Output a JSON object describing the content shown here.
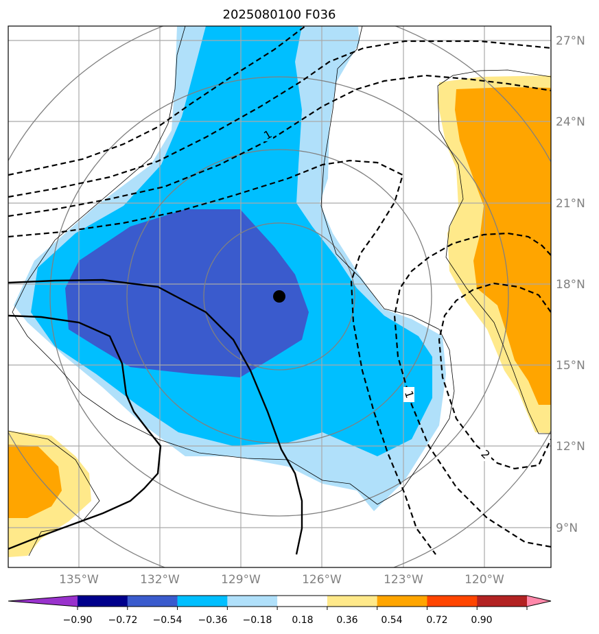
{
  "title": "2025080100 F036",
  "map": {
    "lon_labels": [
      "135°W",
      "132°W",
      "129°W",
      "126°W",
      "123°W",
      "120°W"
    ],
    "lat_labels": [
      "27°N",
      "24°N",
      "21°N",
      "18°N",
      "15°N",
      "12°N",
      "9°N"
    ],
    "contour_labels": [
      "1",
      "1",
      "2"
    ],
    "storm_center": {
      "lon": -127.5,
      "lat": 17.5
    }
  },
  "colorbar": {
    "ticks": [
      "−0.90",
      "−0.72",
      "−0.54",
      "−0.36",
      "−0.18",
      "0.18",
      "0.36",
      "0.54",
      "0.72",
      "0.90"
    ],
    "colors": [
      "#9932cc",
      "#00008b",
      "#3a5bcd",
      "#00bfff",
      "#b0e0fa",
      "#ffffff",
      "#ffe98a",
      "#ffa500",
      "#ff4500",
      "#b22222",
      "#ff88aa"
    ]
  },
  "colors": {
    "grid": "#a9a9a9",
    "range_rings": "#808080",
    "coast": "#000000"
  }
}
